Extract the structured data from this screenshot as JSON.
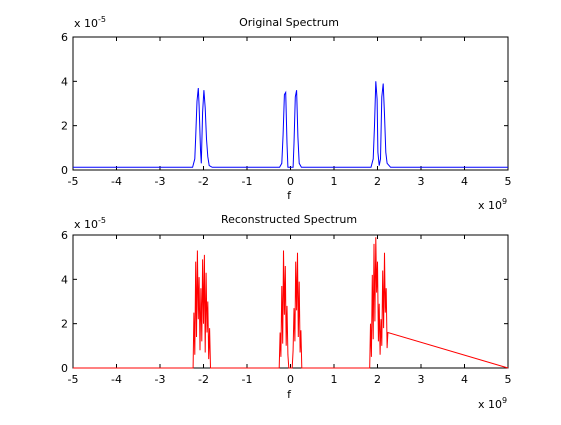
{
  "chart_data": [
    {
      "type": "line",
      "title": "Original Spectrum",
      "xlabel": "f",
      "ylabel": "",
      "x_multiplier_label": "x 10",
      "x_multiplier_exp": "9",
      "y_multiplier_label": "x 10",
      "y_multiplier_exp": "-5",
      "xlim": [
        -5,
        5
      ],
      "ylim": [
        0,
        6
      ],
      "x_ticks": [
        "-5",
        "-4",
        "-3",
        "-2",
        "-1",
        "0",
        "1",
        "2",
        "3",
        "4",
        "5"
      ],
      "y_ticks": [
        "0",
        "2",
        "4",
        "6"
      ],
      "grid": false,
      "color": "#0000ff",
      "baseline_level": 0.12,
      "series": [
        {
          "x": [
            -5,
            -2.25,
            -2.2,
            -2.18,
            -2.15,
            -2.12,
            -2.1,
            -2.07,
            -2.05,
            -2.02,
            -1.99,
            -1.96,
            -1.93,
            -1.9,
            -1.87,
            -1.8,
            -0.25,
            -0.2,
            -0.17,
            -0.14,
            -0.11,
            -0.08,
            -0.06,
            0.06,
            0.08,
            0.11,
            0.14,
            0.17,
            0.2,
            0.25,
            1.85,
            1.9,
            1.93,
            1.96,
            1.99,
            2.01,
            2.04,
            2.07,
            2.1,
            2.13,
            2.16,
            2.19,
            2.22,
            2.3,
            5
          ],
          "y": [
            0.12,
            0.12,
            0.5,
            1.5,
            3.1,
            3.7,
            2.9,
            0.9,
            0.3,
            2.6,
            3.6,
            2.8,
            1.4,
            0.6,
            0.2,
            0.12,
            0.12,
            0.3,
            1.6,
            3.4,
            3.5,
            1.2,
            0.12,
            0.12,
            1.2,
            3.3,
            3.6,
            1.5,
            0.3,
            0.12,
            0.12,
            0.5,
            2.0,
            4.0,
            3.2,
            0.8,
            0.2,
            0.5,
            3.3,
            3.9,
            2.5,
            0.8,
            0.3,
            0.12,
            0.12
          ]
        }
      ]
    },
    {
      "type": "line",
      "title": "Reconstructed Spectrum",
      "xlabel": "f",
      "ylabel": "",
      "x_multiplier_label": "x 10",
      "x_multiplier_exp": "9",
      "y_multiplier_label": "x 10",
      "y_multiplier_exp": "-5",
      "xlim": [
        -5,
        5
      ],
      "ylim": [
        0,
        6
      ],
      "x_ticks": [
        "-5",
        "-4",
        "-3",
        "-2",
        "-1",
        "0",
        "1",
        "2",
        "3",
        "4",
        "5"
      ],
      "y_ticks": [
        "0",
        "2",
        "4",
        "6"
      ],
      "grid": false,
      "color": "#ff0000",
      "series": [
        {
          "x": [
            -5,
            -2.24,
            -2.22,
            -2.2,
            -2.18,
            -2.16,
            -2.14,
            -2.12,
            -2.1,
            -2.08,
            -2.06,
            -2.04,
            -2.02,
            -2.0,
            -1.98,
            -1.96,
            -1.94,
            -1.92,
            -1.9,
            -1.88,
            -1.86,
            -1.84,
            -0.26,
            -0.24,
            -0.22,
            -0.2,
            -0.18,
            -0.16,
            -0.14,
            -0.12,
            -0.1,
            -0.08,
            -0.06,
            -0.04,
            0.04,
            0.06,
            0.08,
            0.1,
            0.12,
            0.14,
            0.16,
            0.18,
            0.2,
            0.22,
            0.24,
            0.26,
            1.82,
            1.84,
            1.86,
            1.88,
            1.9,
            1.92,
            1.94,
            1.96,
            1.98,
            2.0,
            2.02,
            2.04,
            2.06,
            2.08,
            2.1,
            2.12,
            2.14,
            2.16,
            2.18,
            2.2,
            2.22,
            2.24,
            5
          ],
          "y": [
            0,
            0,
            2.5,
            0.6,
            4.8,
            1.4,
            5.3,
            2.2,
            4.1,
            0.8,
            3.6,
            1.2,
            4.9,
            2.0,
            5.1,
            0.7,
            4.3,
            1.6,
            3.0,
            0.4,
            1.8,
            0,
            0,
            1.6,
            0.5,
            3.7,
            1.1,
            5.3,
            2.4,
            4.6,
            1.0,
            2.8,
            0.6,
            0,
            0,
            0.8,
            2.7,
            1.2,
            4.8,
            2.6,
            5.2,
            1.4,
            3.9,
            0.7,
            1.7,
            0,
            0,
            2.0,
            0.5,
            4.2,
            1.3,
            5.6,
            2.1,
            5.9,
            3.4,
            4.8,
            1.2,
            2.9,
            0.6,
            2.2,
            1.0,
            4.4,
            1.8,
            5.2,
            2.5,
            3.6,
            0.9,
            1.6,
            0
          ]
        }
      ]
    }
  ]
}
